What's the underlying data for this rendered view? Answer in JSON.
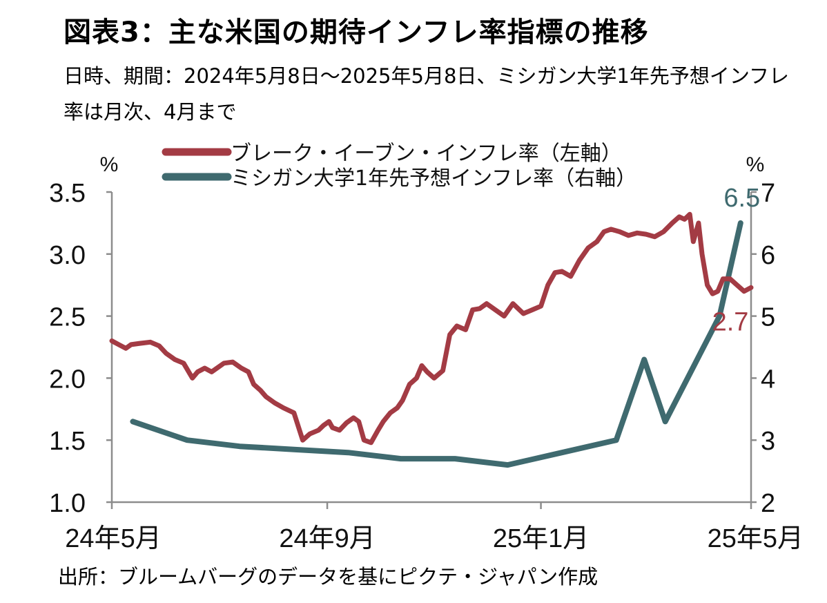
{
  "title": "図表3：主な米国の期待インフレ率指標の推移",
  "subtitle": "日時、期間：2024年5月8日～2025年5月8日、ミシガン大学1年先予想インフレ率は月次、4月まで",
  "source": "出所：ブルームバーグのデータを基にピクテ・ジャパン作成",
  "chart_data": {
    "type": "line",
    "left_axis": {
      "unit": "%",
      "ylim": [
        1.0,
        3.5
      ],
      "ticks": [
        "1.0",
        "1.5",
        "2.0",
        "2.5",
        "3.0",
        "3.5"
      ]
    },
    "right_axis": {
      "unit": "%",
      "ylim": [
        2,
        7
      ],
      "ticks": [
        "2",
        "3",
        "4",
        "5",
        "6",
        "7"
      ]
    },
    "x_axis": {
      "start": "2024-05-08",
      "end": "2025-05-08",
      "tick_labels": [
        {
          "label": "24年5月",
          "date": "2024-05-08"
        },
        {
          "label": "24年9月",
          "date": "2024-09-08"
        },
        {
          "label": "25年1月",
          "date": "2025-01-08"
        },
        {
          "label": "25年5月",
          "date": "2025-05-08"
        }
      ]
    },
    "series": [
      {
        "name": "ブレーク・イーブン・インフレ率（左軸）",
        "axis": "left",
        "color": "#a33b44",
        "end_label": "2.7",
        "x": [
          "2024-05-08",
          "2024-05-12",
          "2024-05-16",
          "2024-05-19",
          "2024-05-24",
          "2024-05-30",
          "2024-06-04",
          "2024-06-08",
          "2024-06-13",
          "2024-06-18",
          "2024-06-23",
          "2024-06-26",
          "2024-06-30",
          "2024-07-04",
          "2024-07-07",
          "2024-07-11",
          "2024-07-16",
          "2024-07-21",
          "2024-07-25",
          "2024-07-28",
          "2024-08-01",
          "2024-08-04",
          "2024-08-09",
          "2024-08-14",
          "2024-08-20",
          "2024-08-25",
          "2024-08-29",
          "2024-09-03",
          "2024-09-06",
          "2024-09-09",
          "2024-09-11",
          "2024-09-15",
          "2024-09-19",
          "2024-09-23",
          "2024-09-26",
          "2024-09-29",
          "2024-10-03",
          "2024-10-07",
          "2024-10-10",
          "2024-10-14",
          "2024-10-18",
          "2024-10-21",
          "2024-10-25",
          "2024-10-29",
          "2024-11-01",
          "2024-11-04",
          "2024-11-08",
          "2024-11-13",
          "2024-11-17",
          "2024-11-21",
          "2024-11-26",
          "2024-11-30",
          "2024-12-04",
          "2024-12-08",
          "2024-12-13",
          "2024-12-18",
          "2024-12-23",
          "2024-12-29",
          "2025-01-03",
          "2025-01-08",
          "2025-01-12",
          "2025-01-16",
          "2025-01-20",
          "2025-01-25",
          "2025-01-30",
          "2025-02-04",
          "2025-02-09",
          "2025-02-13",
          "2025-02-17",
          "2025-02-22",
          "2025-02-27",
          "2025-03-04",
          "2025-03-09",
          "2025-03-14",
          "2025-03-19",
          "2025-03-24",
          "2025-03-28",
          "2025-03-31",
          "2025-04-03",
          "2025-04-05",
          "2025-04-08",
          "2025-04-10",
          "2025-04-13",
          "2025-04-16",
          "2025-04-19",
          "2025-04-22",
          "2025-04-26",
          "2025-04-30",
          "2025-05-04",
          "2025-05-08"
        ],
        "values": [
          2.3,
          2.27,
          2.24,
          2.27,
          2.28,
          2.29,
          2.26,
          2.2,
          2.15,
          2.12,
          2.0,
          2.05,
          2.08,
          2.05,
          2.08,
          2.12,
          2.13,
          2.08,
          2.05,
          1.95,
          1.9,
          1.85,
          1.8,
          1.76,
          1.72,
          1.5,
          1.55,
          1.58,
          1.62,
          1.65,
          1.6,
          1.58,
          1.64,
          1.68,
          1.65,
          1.5,
          1.48,
          1.58,
          1.65,
          1.72,
          1.76,
          1.82,
          1.95,
          2.0,
          2.1,
          2.05,
          2.0,
          2.06,
          2.35,
          2.42,
          2.39,
          2.55,
          2.56,
          2.6,
          2.55,
          2.5,
          2.6,
          2.52,
          2.55,
          2.58,
          2.75,
          2.85,
          2.86,
          2.82,
          2.95,
          3.05,
          3.1,
          3.18,
          3.2,
          3.18,
          3.15,
          3.17,
          3.16,
          3.14,
          3.18,
          3.25,
          3.3,
          3.28,
          3.32,
          3.1,
          3.25,
          3.0,
          2.75,
          2.68,
          2.7,
          2.8,
          2.8,
          2.75,
          2.7,
          2.73
        ]
      },
      {
        "name": "ミシガン大学1年先予想インフレ率（右軸）",
        "axis": "right",
        "color": "#3f6a6f",
        "end_label": "6.5",
        "x": [
          "2024-05-20",
          "2024-06-20",
          "2024-07-20",
          "2024-08-20",
          "2024-09-20",
          "2024-10-20",
          "2024-11-20",
          "2024-12-20",
          "2025-01-20",
          "2025-02-20",
          "2025-03-20",
          "2025-04-20"
        ],
        "values": [
          3.3,
          3.0,
          2.9,
          2.85,
          2.8,
          2.7,
          2.7,
          2.6,
          2.8,
          3.0,
          3.3,
          5.0
        ],
        "extra_points": [
          {
            "x": "2025-03-08",
            "value": 4.3
          },
          {
            "x": "2025-05-02",
            "value": 6.5
          }
        ]
      }
    ],
    "grid": false,
    "legend_placement": "top"
  }
}
